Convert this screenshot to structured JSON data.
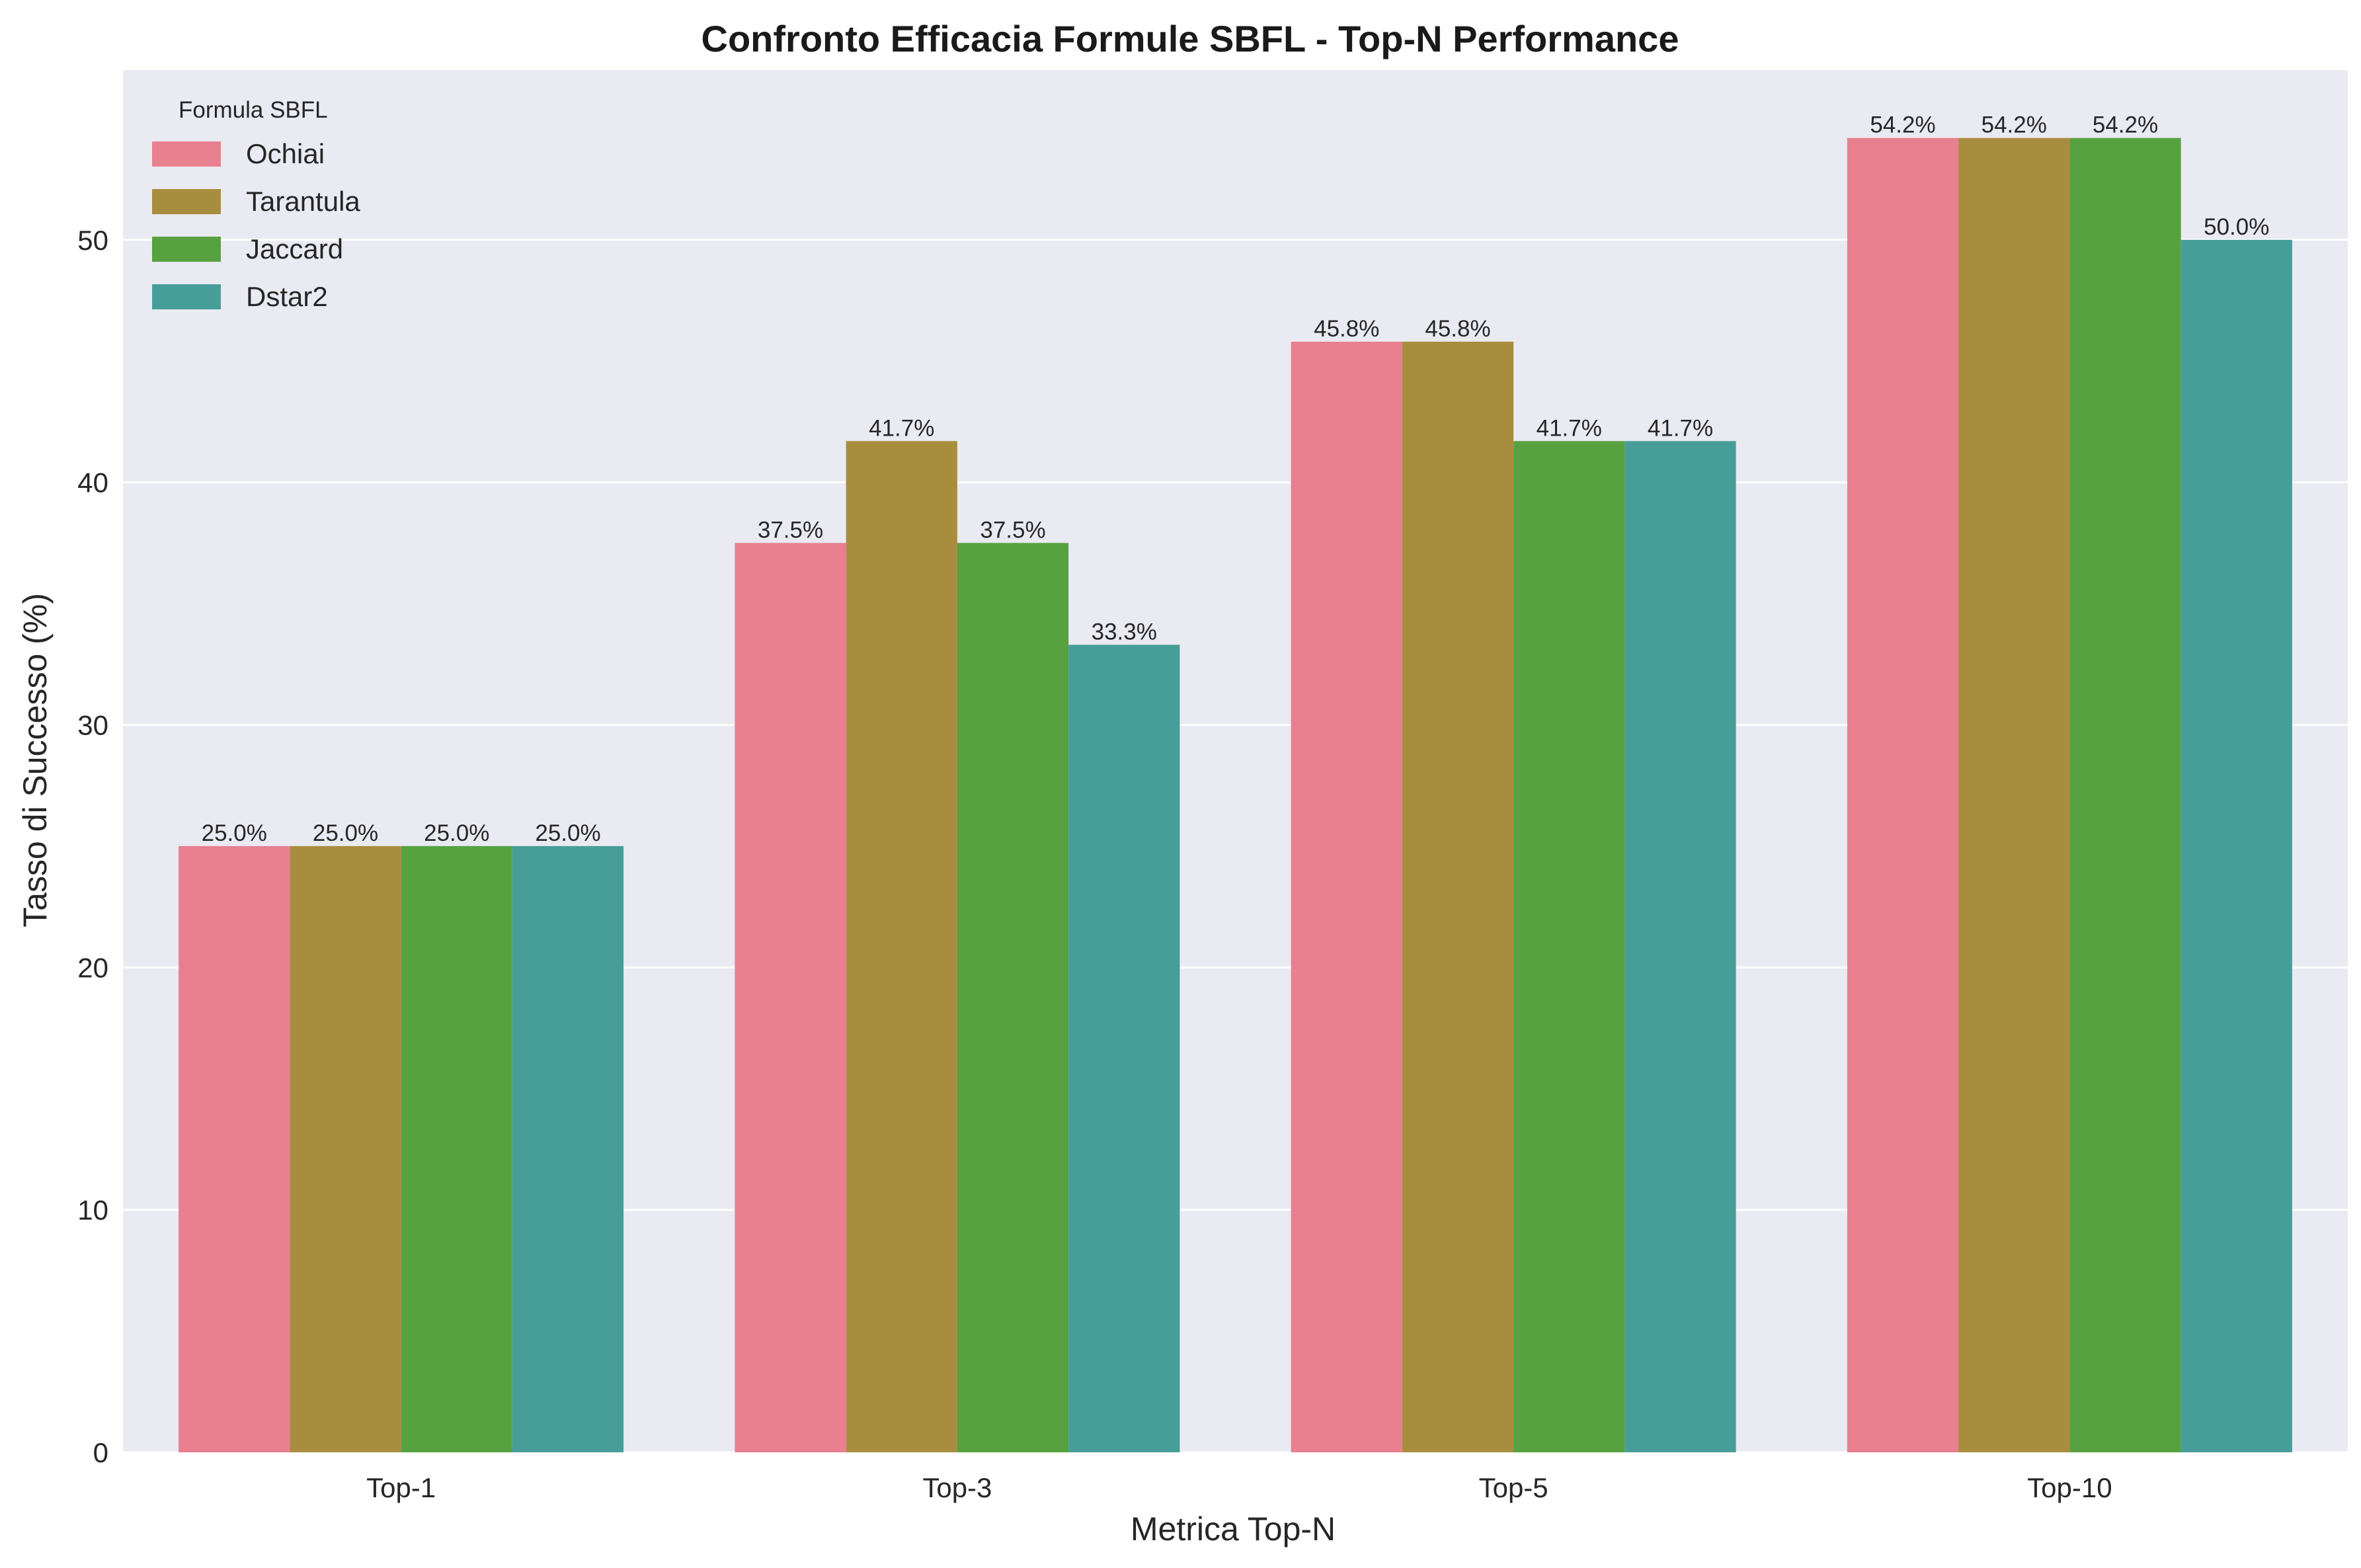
{
  "chart_data": {
    "type": "bar",
    "title": "Confronto Efficacia Formule SBFL - Top-N Performance",
    "xlabel": "Metrica Top-N",
    "ylabel": "Tasso di Successo (%)",
    "categories": [
      "Top-1",
      "Top-3",
      "Top-5",
      "Top-10"
    ],
    "ylim": [
      0,
      57
    ],
    "yticks": [
      0,
      10,
      20,
      30,
      40,
      50
    ],
    "grid": true,
    "legend": {
      "title": "Formula SBFL",
      "placement": "top-left"
    },
    "series": [
      {
        "name": "Ochiai",
        "color": "#e8808f",
        "values": [
          25.0,
          37.5,
          45.8,
          54.2
        ],
        "labels": [
          "25.0%",
          "37.5%",
          "45.8%",
          "54.2%"
        ]
      },
      {
        "name": "Tarantula",
        "color": "#a98d3e",
        "values": [
          25.0,
          41.7,
          45.8,
          54.2
        ],
        "labels": [
          "25.0%",
          "41.7%",
          "45.8%",
          "54.2%"
        ]
      },
      {
        "name": "Jaccard",
        "color": "#57a140",
        "values": [
          25.0,
          37.5,
          41.7,
          54.2
        ],
        "labels": [
          "25.0%",
          "37.5%",
          "41.7%",
          "54.2%"
        ]
      },
      {
        "name": "Dstar2",
        "color": "#479e98",
        "values": [
          25.0,
          33.3,
          41.7,
          50.0
        ],
        "labels": [
          "25.0%",
          "33.3%",
          "41.7%",
          "50.0%"
        ]
      }
    ]
  }
}
